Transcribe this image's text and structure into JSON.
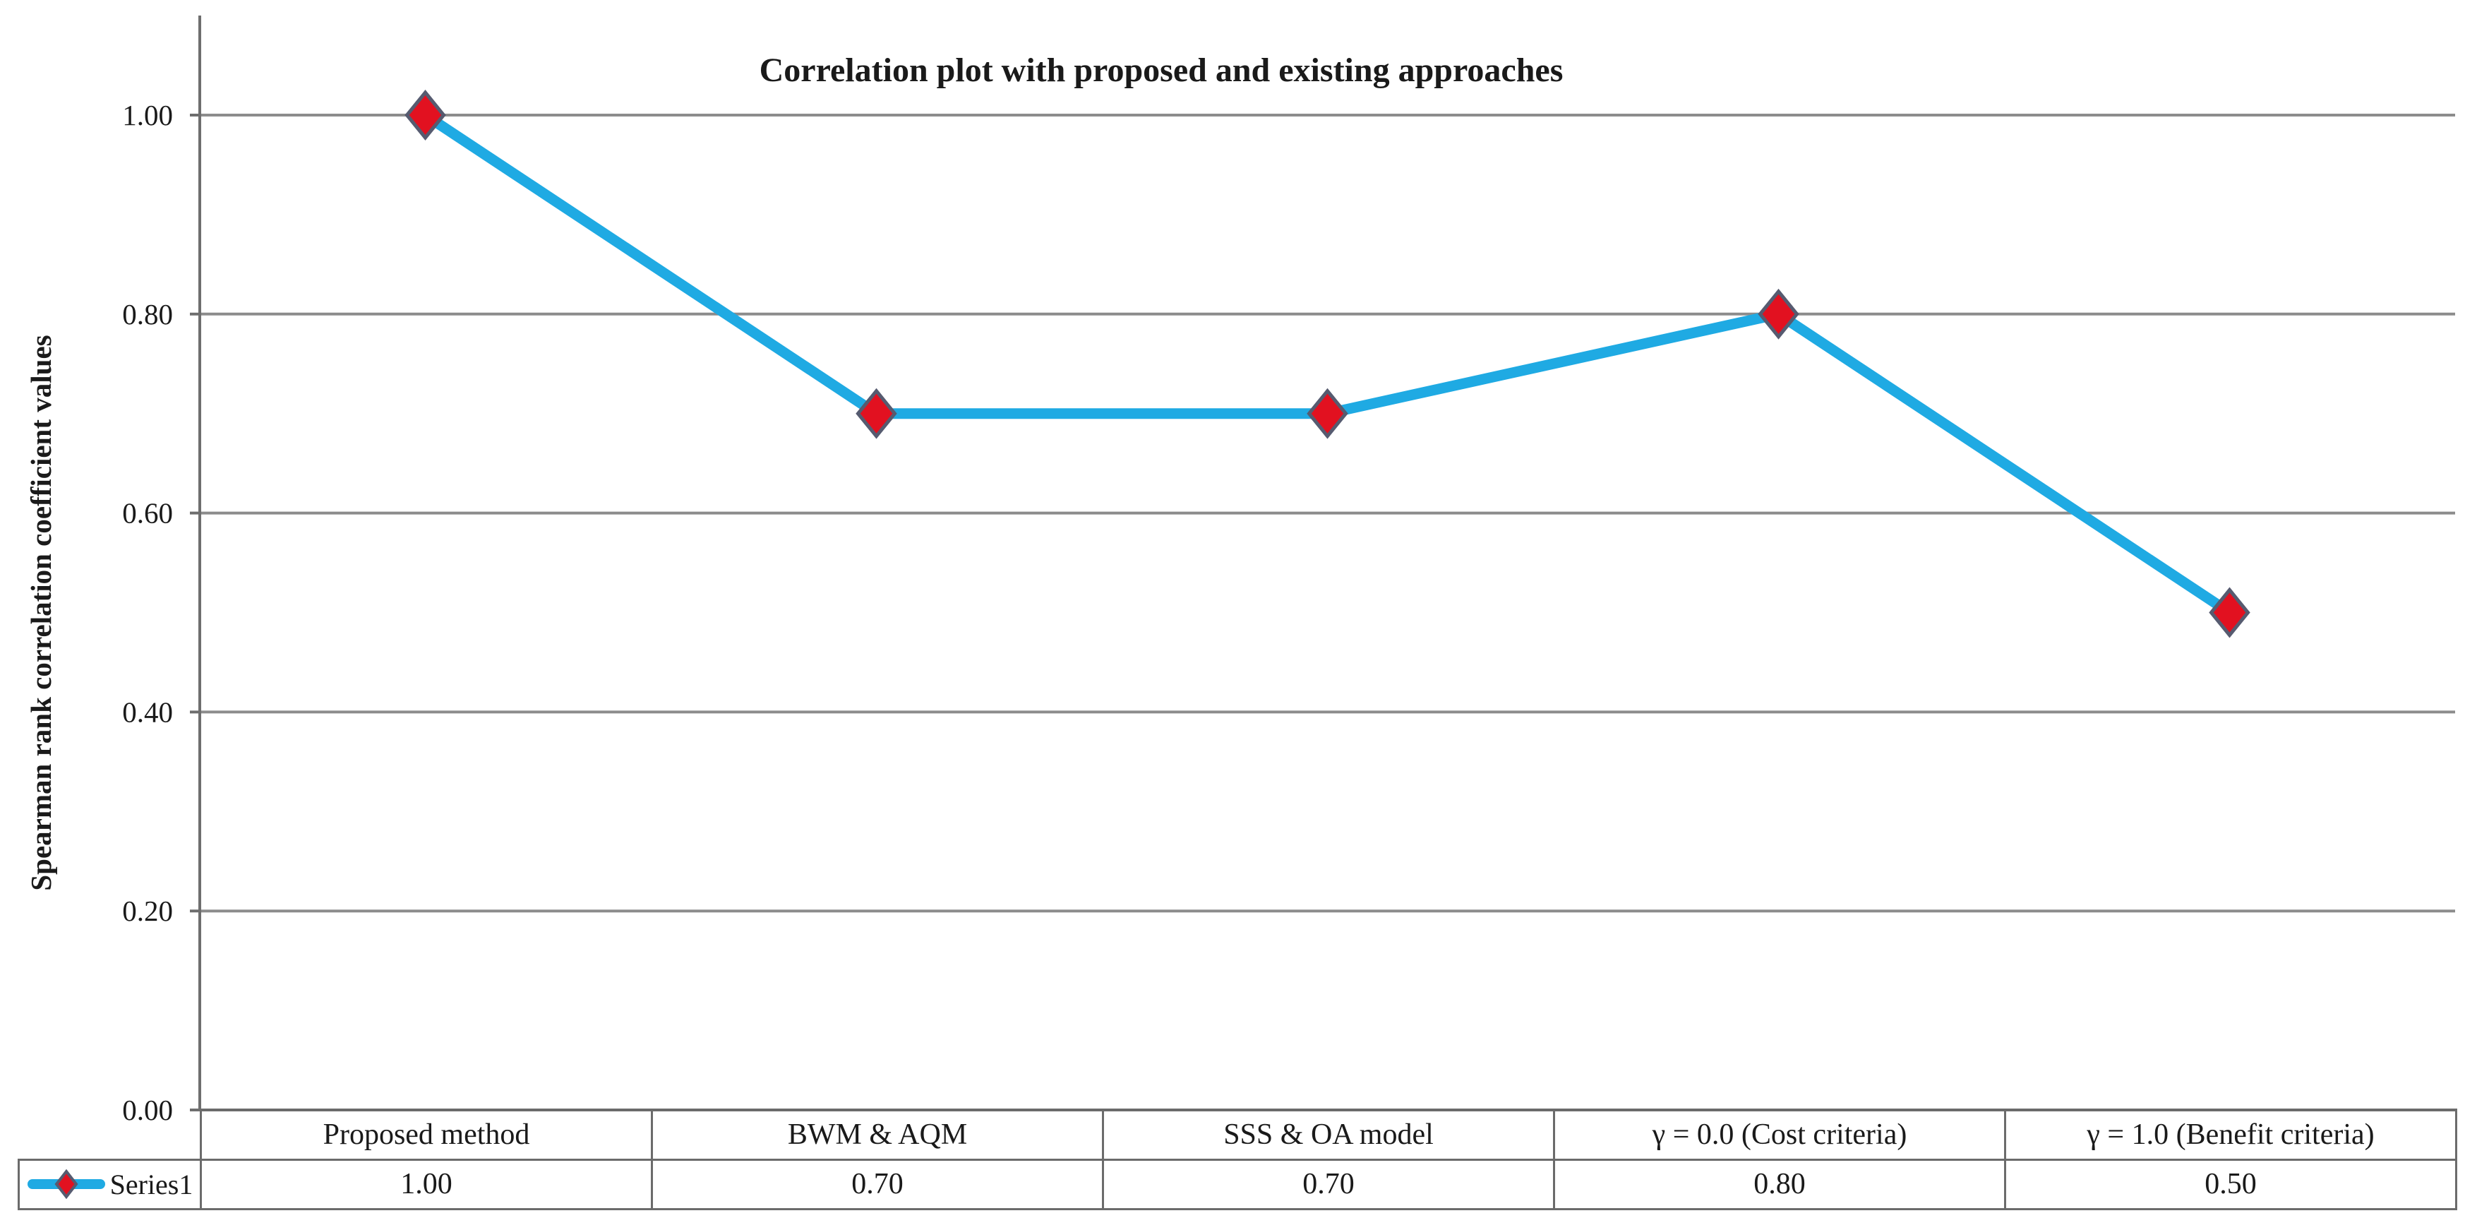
{
  "chart_data": {
    "type": "line",
    "title": "Correlation plot with proposed and existing approaches",
    "ylabel": "Spearman rank correlation coefficient values",
    "xlabel": "",
    "categories": [
      "Proposed method",
      "BWM & AQM",
      "SSS & OA model",
      "γ = 0.0 (Cost criteria)",
      "γ = 1.0 (Benefit criteria)"
    ],
    "series": [
      {
        "name": "Series1",
        "values": [
          1.0,
          0.7,
          0.7,
          0.8,
          0.5
        ]
      }
    ],
    "value_labels": [
      "1.00",
      "0.70",
      "0.70",
      "0.80",
      "0.50"
    ],
    "y_ticks": [
      "1.00",
      "0.80",
      "0.60",
      "0.40",
      "0.20",
      "0.00"
    ],
    "ylim": [
      0,
      1
    ],
    "grid": "horizontal",
    "legend_position": "data-table-left",
    "marker_shape": "diamond",
    "colors": {
      "line": "#1FAAE3",
      "marker_fill": "#E21120",
      "marker_stroke": "#565B70",
      "gridline": "#8C8C8C",
      "axis": "#6E6E6E",
      "table_border": "#6B6B6B",
      "text": "#1A1A1A"
    }
  }
}
